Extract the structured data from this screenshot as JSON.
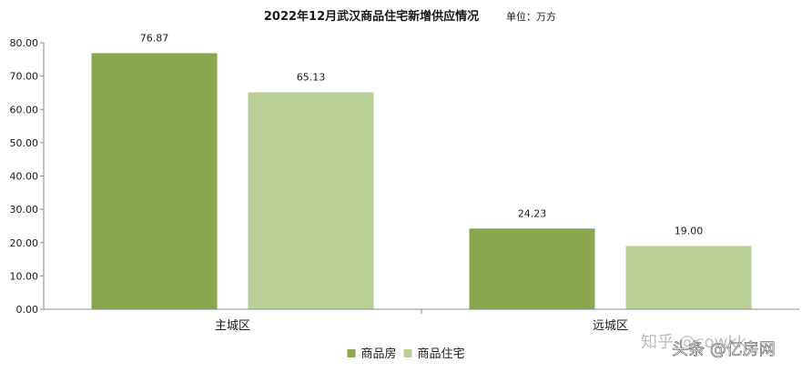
{
  "chart_data": {
    "type": "bar",
    "title": "2022年12月武汉商品住宅新增供应情况",
    "unit_label": "单位：万方",
    "categories": [
      "主城区",
      "远城区"
    ],
    "series": [
      {
        "name": "商品房",
        "values": [
          76.87,
          24.23
        ],
        "color": "#8aa64e"
      },
      {
        "name": "商品住宅",
        "values": [
          65.13,
          19.0
        ],
        "color": "#b9cf96"
      }
    ],
    "ylim": [
      0,
      80
    ],
    "y_ticks": [
      "0.00",
      "10.00",
      "20.00",
      "30.00",
      "40.00",
      "50.00",
      "60.00",
      "70.00",
      "80.00"
    ],
    "value_labels": [
      [
        "76.87",
        "24.23"
      ],
      [
        "65.13",
        "19.00"
      ]
    ],
    "grid": false,
    "legend": "bottom-center",
    "xlabel": "",
    "ylabel": ""
  },
  "watermark": {
    "zhihu": "知乎 @cowkk",
    "toutiao": "头条 @亿房网"
  }
}
